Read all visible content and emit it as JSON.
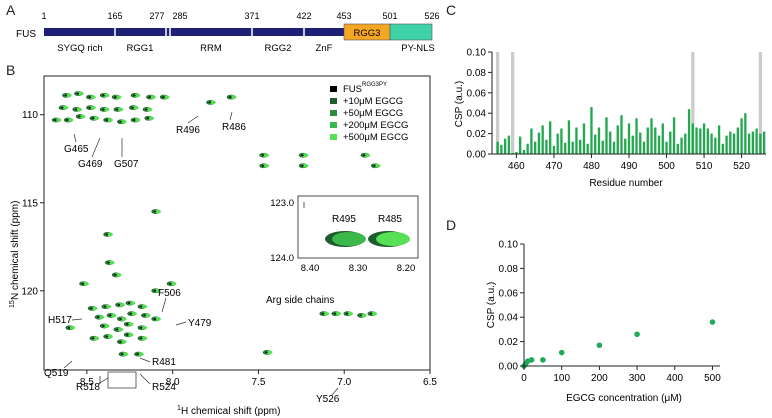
{
  "panels": {
    "a": "A",
    "b": "B",
    "c": "C",
    "d": "D"
  },
  "colors": {
    "navy": "#1f1f78",
    "orange": "#f5a623",
    "teal": "#3fd1a7",
    "green": "#1faa5a",
    "bar_green": "#22a84e",
    "highlight": "#cccccc"
  },
  "domain_map": {
    "protein": "FUS",
    "residue_ticks": [
      "1",
      "165",
      "277",
      "285",
      "371",
      "422",
      "453",
      "501",
      "526"
    ],
    "domains": [
      "SYGQ rich",
      "RGG1",
      "RRM",
      "RGG2",
      "ZnF",
      "RGG3",
      "PY-NLS"
    ]
  },
  "chart_data": [
    {
      "type": "scatter",
      "panel": "B",
      "xlabel_sup": "1",
      "xlabel": "H chemical shift (ppm)",
      "ylabel_sup": "15",
      "ylabel": "N  chemical shift (ppm)",
      "xlim": [
        8.75,
        6.5
      ],
      "ylim": [
        124.5,
        107.8
      ],
      "x_ticks": [
        "8.5",
        "8.0",
        "7.5",
        "7.0",
        "6.5"
      ],
      "y_ticks": [
        "110",
        "115",
        "120"
      ],
      "legend": [
        "FUS",
        "+10μM EGCG",
        "+50μM EGCG",
        "+200μM EGCG",
        "+500μM EGCG"
      ],
      "legend_sup": "RGG3PY",
      "legend_colors": [
        "#000000",
        "#1f5c2e",
        "#2e8b3c",
        "#3cb84a",
        "#55e055"
      ],
      "peak_labels": [
        "R496",
        "R486",
        "G465",
        "G469",
        "G507",
        "F506",
        "H517",
        "Y479",
        "R481",
        "Q519",
        "R518",
        "R524",
        "Y526"
      ],
      "annotation": "Arg side chains",
      "peaks": [
        {
          "x": 8.62,
          "y": 108.9
        },
        {
          "x": 8.55,
          "y": 108.8
        },
        {
          "x": 8.48,
          "y": 109.0
        },
        {
          "x": 8.4,
          "y": 108.9
        },
        {
          "x": 8.33,
          "y": 109.0
        },
        {
          "x": 8.22,
          "y": 108.9
        },
        {
          "x": 8.13,
          "y": 109.0
        },
        {
          "x": 8.05,
          "y": 109.0
        },
        {
          "x": 8.64,
          "y": 109.6
        },
        {
          "x": 8.56,
          "y": 109.7
        },
        {
          "x": 8.48,
          "y": 109.6
        },
        {
          "x": 8.4,
          "y": 109.7
        },
        {
          "x": 8.32,
          "y": 109.7
        },
        {
          "x": 8.23,
          "y": 109.6
        },
        {
          "x": 8.15,
          "y": 109.7
        },
        {
          "x": 8.68,
          "y": 110.3
        },
        {
          "x": 8.61,
          "y": 110.3
        },
        {
          "x": 8.54,
          "y": 110.1
        },
        {
          "x": 8.46,
          "y": 110.2
        },
        {
          "x": 8.38,
          "y": 110.3
        },
        {
          "x": 8.3,
          "y": 110.4
        },
        {
          "x": 8.22,
          "y": 110.3
        },
        {
          "x": 8.14,
          "y": 110.2
        },
        {
          "x": 7.78,
          "y": 109.3
        },
        {
          "x": 7.66,
          "y": 109.0
        },
        {
          "x": 7.47,
          "y": 112.3
        },
        {
          "x": 7.24,
          "y": 112.3
        },
        {
          "x": 6.88,
          "y": 112.3
        },
        {
          "x": 6.82,
          "y": 112.9
        },
        {
          "x": 7.47,
          "y": 112.9
        },
        {
          "x": 7.24,
          "y": 112.9
        },
        {
          "x": 8.1,
          "y": 115.5
        },
        {
          "x": 8.38,
          "y": 116.8
        },
        {
          "x": 8.37,
          "y": 118.4
        },
        {
          "x": 8.33,
          "y": 119.1
        },
        {
          "x": 8.52,
          "y": 119.6
        },
        {
          "x": 8.01,
          "y": 119.6
        },
        {
          "x": 8.1,
          "y": 120.0
        },
        {
          "x": 8.47,
          "y": 121.0
        },
        {
          "x": 8.39,
          "y": 120.9
        },
        {
          "x": 8.31,
          "y": 120.8
        },
        {
          "x": 8.25,
          "y": 120.7
        },
        {
          "x": 8.18,
          "y": 120.9
        },
        {
          "x": 8.43,
          "y": 121.5
        },
        {
          "x": 8.36,
          "y": 121.4
        },
        {
          "x": 8.3,
          "y": 121.6
        },
        {
          "x": 8.24,
          "y": 121.3
        },
        {
          "x": 8.16,
          "y": 121.4
        },
        {
          "x": 8.1,
          "y": 121.6
        },
        {
          "x": 8.6,
          "y": 122.1
        },
        {
          "x": 8.4,
          "y": 122.0
        },
        {
          "x": 8.32,
          "y": 122.2
        },
        {
          "x": 8.26,
          "y": 121.9
        },
        {
          "x": 8.18,
          "y": 122.1
        },
        {
          "x": 8.46,
          "y": 122.7
        },
        {
          "x": 8.38,
          "y": 122.6
        },
        {
          "x": 8.3,
          "y": 122.9
        },
        {
          "x": 8.26,
          "y": 122.5
        },
        {
          "x": 8.18,
          "y": 122.7
        },
        {
          "x": 8.29,
          "y": 123.6
        },
        {
          "x": 8.2,
          "y": 123.6
        },
        {
          "x": 7.45,
          "y": 123.5
        },
        {
          "x": 7.12,
          "y": 121.3
        },
        {
          "x": 7.05,
          "y": 121.3
        },
        {
          "x": 6.98,
          "y": 121.3
        },
        {
          "x": 6.9,
          "y": 121.4
        },
        {
          "x": 6.84,
          "y": 121.3
        }
      ],
      "inset": {
        "xlim": [
          8.4,
          8.2
        ],
        "ylim": [
          123.0,
          124.0
        ],
        "x_ticks": [
          "8.40",
          "8.30",
          "8.20"
        ],
        "y_ticks": [
          "123.0",
          "124.0"
        ],
        "peak_labels": [
          "R495",
          "R485"
        ]
      }
    },
    {
      "type": "bar",
      "panel": "C",
      "xlabel": "Residue number",
      "ylabel": "CSP (a.u.)",
      "ylim": [
        0,
        0.1
      ],
      "xlim": [
        453.5,
        526.5
      ],
      "x_ticks": [
        "460",
        "470",
        "480",
        "490",
        "500",
        "510",
        "520"
      ],
      "y_ticks": [
        "0.00",
        "0.02",
        "0.04",
        "0.06",
        "0.08",
        "0.10"
      ],
      "highlighted_residues": [
        455,
        459,
        507,
        525
      ],
      "residues": [
        454,
        455,
        456,
        457,
        458,
        459,
        460,
        461,
        462,
        463,
        464,
        465,
        466,
        467,
        468,
        469,
        470,
        471,
        472,
        473,
        474,
        475,
        476,
        477,
        478,
        479,
        480,
        481,
        482,
        483,
        484,
        485,
        486,
        487,
        488,
        489,
        490,
        491,
        492,
        493,
        494,
        495,
        496,
        497,
        498,
        499,
        500,
        501,
        502,
        503,
        504,
        505,
        506,
        507,
        508,
        509,
        510,
        511,
        512,
        513,
        514,
        515,
        516,
        517,
        518,
        519,
        520,
        521,
        522,
        523,
        524,
        525,
        526
      ],
      "values": [
        0,
        0.012,
        0.009,
        0.015,
        0.018,
        0.001,
        0.002,
        0.017,
        0.004,
        0.01,
        0.025,
        0.012,
        0.021,
        0.028,
        0.014,
        0.032,
        0.008,
        0.02,
        0.025,
        0.011,
        0.033,
        0.012,
        0.026,
        0.014,
        0.03,
        0.01,
        0.046,
        0.019,
        0.026,
        0.013,
        0.036,
        0.022,
        0.012,
        0.028,
        0.038,
        0.015,
        0.03,
        0.018,
        0.035,
        0.021,
        0.012,
        0.026,
        0.035,
        0.026,
        0.018,
        0.03,
        0.012,
        0.022,
        0.036,
        0.01,
        0.016,
        0.02,
        0.044,
        0.03,
        0.026,
        0.025,
        0.03,
        0.025,
        0.02,
        0.016,
        0.028,
        0.01,
        0.018,
        0.022,
        0.02,
        0.026,
        0.035,
        0.04,
        0.02,
        0.022,
        0.025,
        0.02,
        0.022
      ]
    },
    {
      "type": "scatter",
      "panel": "D",
      "xlabel": "EGCG concentration (μM)",
      "ylabel": "CSP (a.u.)",
      "xlim": [
        0,
        520
      ],
      "ylim": [
        0,
        0.1
      ],
      "x_ticks": [
        "0",
        "100",
        "200",
        "300",
        "400",
        "500"
      ],
      "y_ticks": [
        "0.00",
        "0.02",
        "0.04",
        "0.06",
        "0.08",
        "0.10"
      ],
      "x": [
        0,
        5,
        10,
        20,
        50,
        100,
        200,
        300,
        500
      ],
      "y": [
        0.0,
        0.002,
        0.004,
        0.005,
        0.005,
        0.011,
        0.017,
        0.026,
        0.036
      ]
    }
  ]
}
